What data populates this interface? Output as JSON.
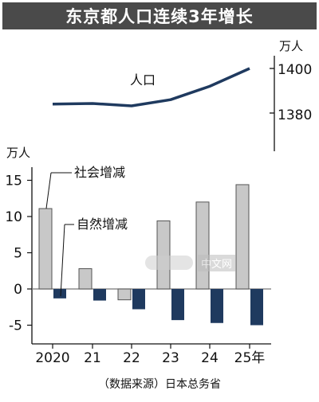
{
  "title": "东京都人口连续3年增长",
  "source": "（数据来源）日本总务省",
  "watermark": "中文网",
  "colors": {
    "title_bg": "#4a4a4a",
    "line": "#1f3a5f",
    "social_bar": "#c8c8c8",
    "natural_bar": "#1f3a5f",
    "grid": "#777777"
  },
  "chart_data": [
    {
      "type": "line",
      "unit_label": "万人",
      "series": [
        {
          "name": "人口",
          "values": [
            1384,
            1384.3,
            1383.2,
            1386,
            1392,
            1400
          ]
        }
      ],
      "categories": [
        "2020",
        "21",
        "22",
        "23",
        "24",
        "25年"
      ],
      "yticks": [
        "1400",
        "1380"
      ],
      "ylim": [
        1370,
        1405
      ]
    },
    {
      "type": "bar",
      "unit_label": "万人",
      "categories": [
        "2020",
        "21",
        "22",
        "23",
        "24",
        "25年"
      ],
      "series": [
        {
          "name": "社会增减",
          "values": [
            11.1,
            2.8,
            -1.5,
            9.4,
            12.0,
            14.4
          ]
        },
        {
          "name": "自然增减",
          "values": [
            -1.3,
            -1.6,
            -2.8,
            -4.3,
            -4.7,
            -5.0
          ]
        }
      ],
      "yticks": [
        "15",
        "10",
        "5",
        "0",
        "-5"
      ],
      "ylim": [
        -7,
        16
      ]
    }
  ]
}
